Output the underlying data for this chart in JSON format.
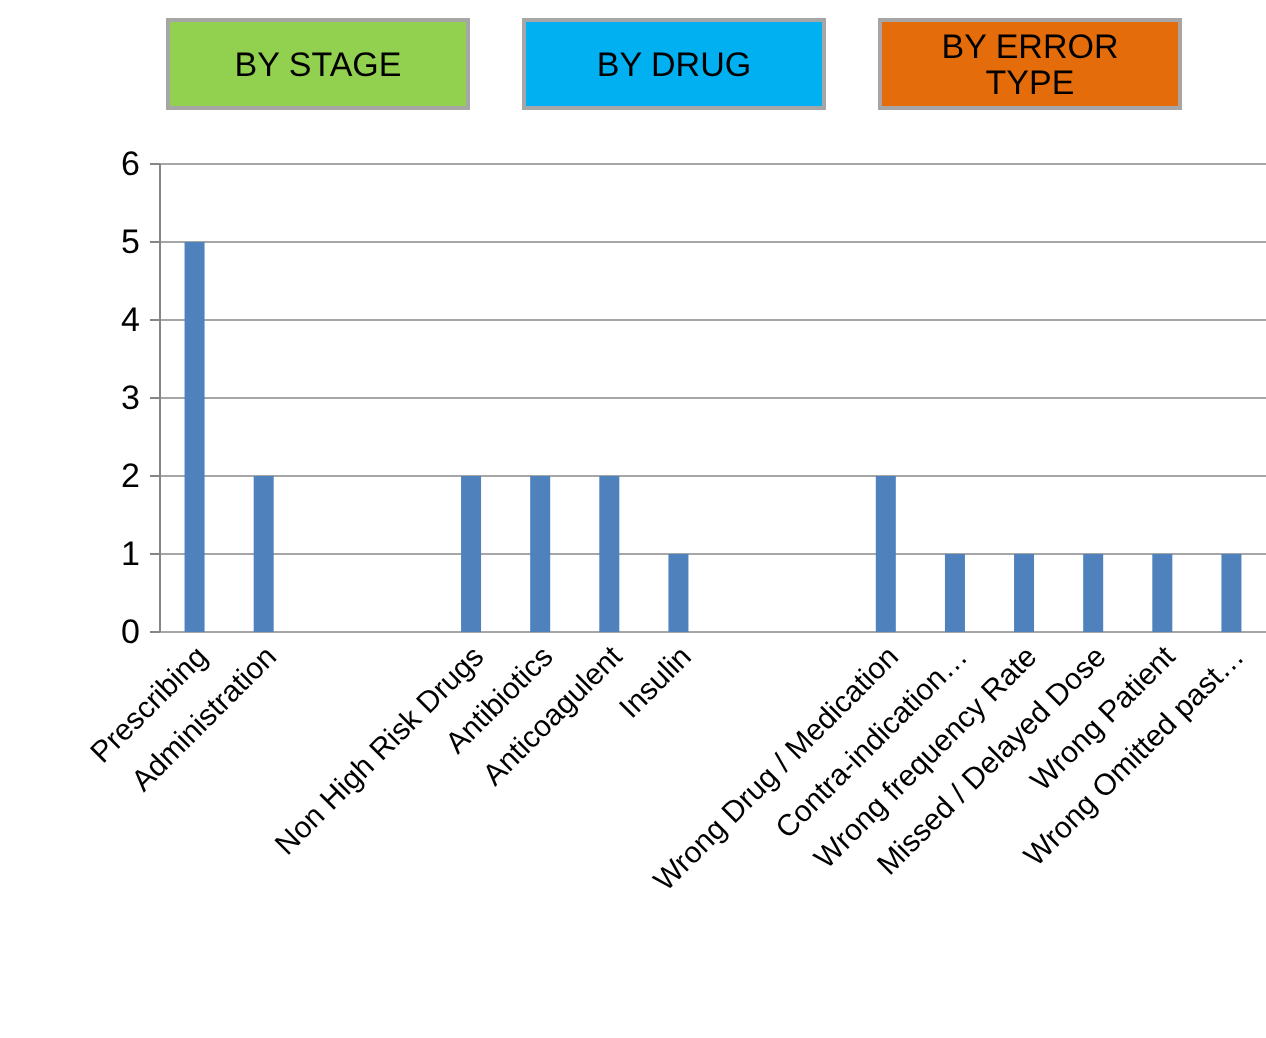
{
  "chart_data": {
    "type": "bar",
    "categories": [
      "Prescribing",
      "Administration",
      null,
      null,
      "Non High Risk Drugs",
      "Antibiotics",
      "Anticoagulent",
      "Insulin",
      null,
      null,
      "Wrong Drug / Medication",
      "Contra-indication…",
      "Wrong frequency Rate",
      "Missed / Delayed Dose",
      "Wrong Patient",
      "Wrong Omitted past…"
    ],
    "values": [
      5,
      2,
      null,
      null,
      2,
      2,
      2,
      1,
      null,
      null,
      2,
      1,
      1,
      1,
      1,
      1
    ],
    "color": "#4f81bd",
    "ylim": [
      0,
      6
    ],
    "yticks": [
      0,
      1,
      2,
      3,
      4,
      5,
      6
    ],
    "grid": "y",
    "annotations": [
      "BY STAGE",
      "BY DRUG",
      "BY ERROR TYPE"
    ]
  }
}
